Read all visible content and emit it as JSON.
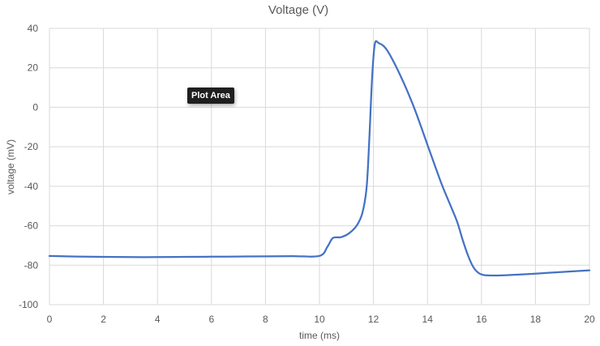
{
  "chart_data": {
    "type": "line",
    "title": "Voltage (V)",
    "xlabel": "time (ms)",
    "ylabel": "voltage (mV)",
    "xlim": [
      0,
      20
    ],
    "ylim": [
      -100,
      40
    ],
    "x_ticks": [
      0,
      2,
      4,
      6,
      8,
      10,
      12,
      14,
      16,
      18,
      20
    ],
    "y_ticks": [
      40,
      20,
      0,
      -20,
      -40,
      -60,
      -80,
      -100
    ],
    "grid": true,
    "series": [
      {
        "color": "#4472c4",
        "x": [
          0,
          1,
          2,
          3,
          4,
          5,
          6,
          7,
          8,
          9,
          10,
          10.3,
          10.5,
          10.8,
          11.1,
          11.4,
          11.6,
          11.75,
          11.85,
          11.95,
          12.05,
          12.2,
          12.5,
          13,
          13.5,
          14,
          14.5,
          14.8,
          15.1,
          15.3,
          15.5,
          15.7,
          15.9,
          16.1,
          16.5,
          17,
          18,
          19,
          20
        ],
        "y": [
          -75.3,
          -75.6,
          -75.8,
          -75.9,
          -75.9,
          -75.8,
          -75.7,
          -75.6,
          -75.5,
          -75.4,
          -75.3,
          -70.5,
          -66.2,
          -65.8,
          -63.8,
          -59.5,
          -53.0,
          -40.0,
          -15.0,
          15.0,
          32.0,
          32.5,
          29.0,
          16.0,
          0.0,
          -19.0,
          -38.0,
          -48.0,
          -58.0,
          -67.0,
          -75.0,
          -81.0,
          -84.0,
          -85.0,
          -85.2,
          -85.0,
          -84.3,
          -83.4,
          -82.6
        ]
      }
    ]
  },
  "tooltip": {
    "label": "Plot Area"
  }
}
